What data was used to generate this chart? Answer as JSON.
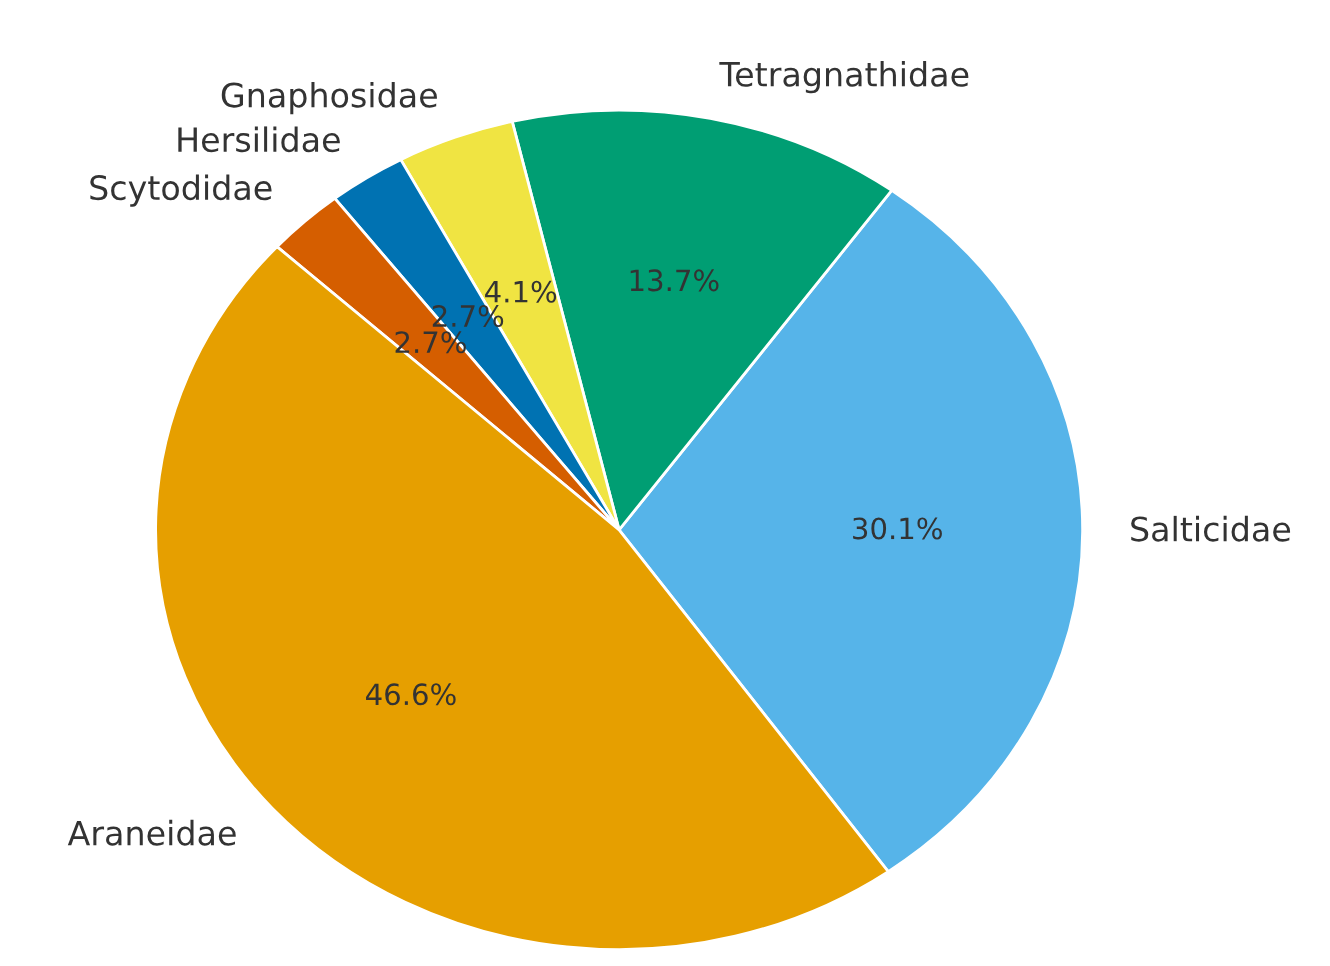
{
  "chart_data": {
    "type": "pie",
    "categories": [
      "Salticidae",
      "Tetragnathidae",
      "Gnaphosidae",
      "Hersilidae",
      "Scytodidae",
      "Araneidae"
    ],
    "values": [
      30.1,
      13.7,
      4.1,
      2.7,
      2.7,
      46.6
    ],
    "colors": [
      "#56b4e9",
      "#009e73",
      "#f0e442",
      "#0072b2",
      "#d55e00",
      "#e69f00"
    ],
    "value_labels": [
      "30.1%",
      "13.7%",
      "4.1%",
      "2.7%",
      "2.7%",
      "46.6%"
    ]
  }
}
